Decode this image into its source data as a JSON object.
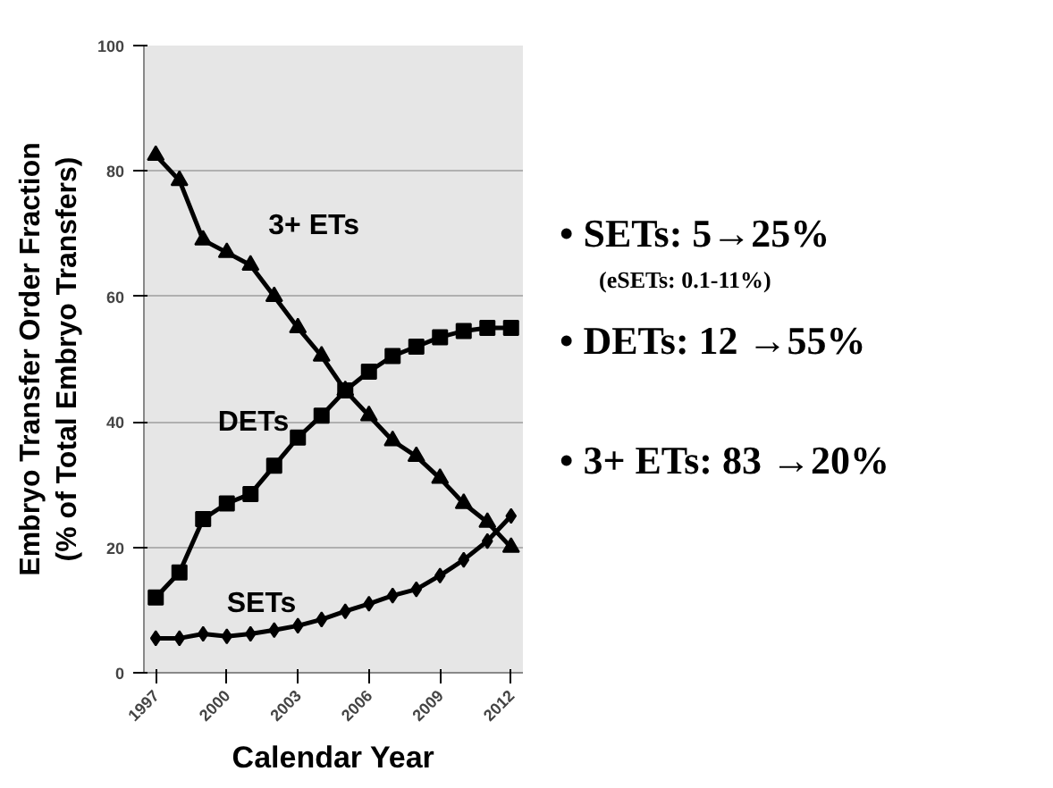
{
  "chart_data": {
    "type": "line",
    "xlabel": "Calendar Year",
    "ylabel": "Embryo Transfer Order Fraction\n(% of Total Embryo Transfers)",
    "x": [
      1997,
      1998,
      1999,
      2000,
      2001,
      2002,
      2003,
      2004,
      2005,
      2006,
      2007,
      2008,
      2009,
      2010,
      2011,
      2012
    ],
    "xlim": [
      1996.5,
      2012.5
    ],
    "xticks": [
      1997,
      2000,
      2003,
      2006,
      2009,
      2012
    ],
    "ylim": [
      0,
      100
    ],
    "yticks": [
      0,
      20,
      40,
      60,
      80,
      100
    ],
    "grid": "y",
    "line_style": "solid",
    "series": [
      {
        "name": "3+ ETs",
        "color": "#000000",
        "marker": "triangle",
        "values": [
          82.5,
          78.5,
          69,
          67,
          65,
          60,
          55,
          50.5,
          45,
          41,
          37,
          34.5,
          31,
          27,
          24,
          20
        ]
      },
      {
        "name": "DETs",
        "color": "#000000",
        "marker": "square",
        "values": [
          12,
          16,
          24.5,
          27,
          28.5,
          33,
          37.5,
          41,
          45,
          48,
          50.5,
          52,
          53.5,
          54.5,
          55,
          55
        ]
      },
      {
        "name": "SETs",
        "color": "#000000",
        "marker": "diamond",
        "values": [
          5.5,
          5.5,
          6.2,
          5.8,
          6.2,
          6.8,
          7.5,
          8.5,
          9.8,
          11,
          12.3,
          13.3,
          15.5,
          18,
          21,
          25
        ]
      }
    ],
    "annotations": [
      "• SETs: 5→25%",
      "(eSETs: 0.1-11%)",
      "• DETs: 12 →55%",
      "• 3+ ETs: 83 →20%"
    ]
  }
}
